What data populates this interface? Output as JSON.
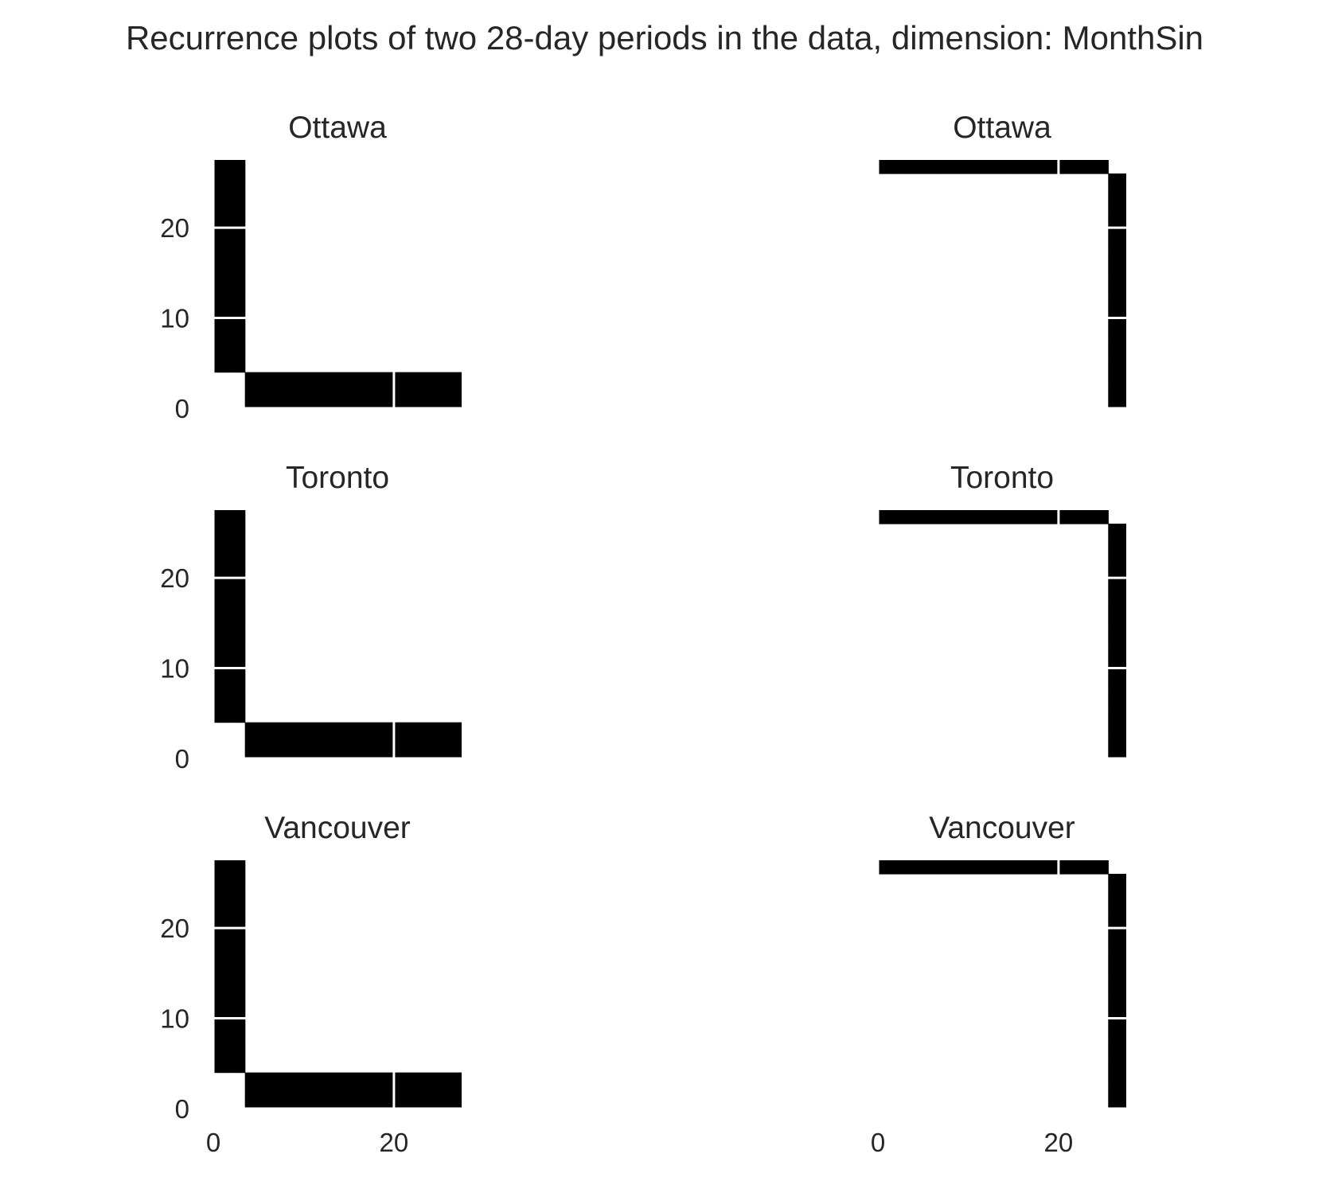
{
  "chart_data": {
    "type": "heatmap",
    "title": "Recurrence plots of two 28-day periods in the data, dimension: MonthSin",
    "colors": {
      "recurrent": "#000000",
      "background": "#ffffff",
      "grid": "#ffffff",
      "text": "#262626"
    },
    "grid": true,
    "n": 28,
    "xlim": [
      0,
      27
    ],
    "ylim": [
      0,
      27
    ],
    "xticks": [
      0,
      20
    ],
    "yticks": [
      0,
      10,
      20
    ],
    "panels": [
      {
        "title": "Ottawa",
        "period": 1,
        "recurrent_days": [
          0,
          1,
          2,
          3
        ],
        "x_tick_labels": [],
        "y_tick_labels": [
          "0",
          "10",
          "20"
        ]
      },
      {
        "title": "Ottawa",
        "period": 2,
        "recurrent_days": [
          26,
          27
        ],
        "x_tick_labels": [],
        "y_tick_labels": []
      },
      {
        "title": "Toronto",
        "period": 1,
        "recurrent_days": [
          0,
          1,
          2,
          3
        ],
        "x_tick_labels": [],
        "y_tick_labels": [
          "0",
          "10",
          "20"
        ]
      },
      {
        "title": "Toronto",
        "period": 2,
        "recurrent_days": [
          26,
          27
        ],
        "x_tick_labels": [],
        "y_tick_labels": []
      },
      {
        "title": "Vancouver",
        "period": 1,
        "recurrent_days": [
          0,
          1,
          2,
          3
        ],
        "x_tick_labels": [
          "0",
          "20"
        ],
        "y_tick_labels": [
          "0",
          "10",
          "20"
        ]
      },
      {
        "title": "Vancouver",
        "period": 2,
        "recurrent_days": [
          26,
          27
        ],
        "x_tick_labels": [
          "0",
          "20"
        ],
        "y_tick_labels": []
      }
    ]
  }
}
